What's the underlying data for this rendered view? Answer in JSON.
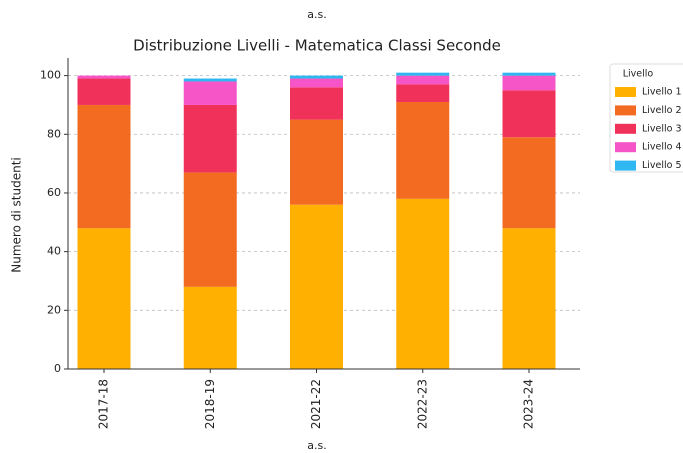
{
  "chart_data": {
    "type": "stacked_bar",
    "caption": "a.s.",
    "title": "Distribuzione Livelli - Matematica Classi Seconde",
    "x_label": "a.s.",
    "y_label": "Numero di studenti",
    "categories": [
      "2017-18",
      "2018-19",
      "2021-22",
      "2022-23",
      "2023-24"
    ],
    "legend_title": "Livello",
    "legend_position": "right",
    "series": [
      {
        "name": "Livello 1",
        "color": "#ffb000",
        "values": [
          48,
          28,
          56,
          58,
          48
        ]
      },
      {
        "name": "Livello 2",
        "color": "#f26b21",
        "values": [
          42,
          39,
          29,
          33,
          31
        ]
      },
      {
        "name": "Livello 3",
        "color": "#f0325a",
        "values": [
          9,
          23,
          11,
          6,
          16
        ]
      },
      {
        "name": "Livello 4",
        "color": "#f655c8",
        "values": [
          1,
          8,
          3,
          3,
          5
        ]
      },
      {
        "name": "Livello 5",
        "color": "#2eb7f0",
        "values": [
          0,
          1,
          1,
          1,
          1
        ]
      }
    ],
    "ylim": [
      0,
      106
    ],
    "yticks": [
      0,
      20,
      40,
      60,
      80,
      100
    ],
    "grid": true
  }
}
